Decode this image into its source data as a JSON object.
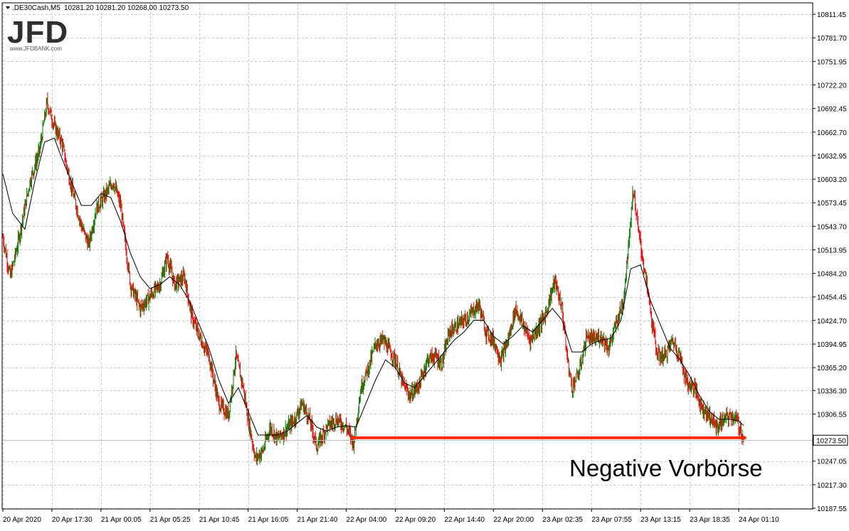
{
  "header": {
    "symbol": ".DE30Cash,M5",
    "ohlc": "10281.20 10281.20 10268,00 10273.50"
  },
  "logo": {
    "text": "JFD",
    "subtext": "www.JFDBANK.com"
  },
  "annotation": {
    "text": "Negative Vorbörse",
    "color": "#ff2a00"
  },
  "chart_data": {
    "type": "line",
    "ylim": [
      10187.55,
      10825
    ],
    "y_ticks": [
      "10811.45",
      "10781.70",
      "10751.95",
      "10722.20",
      "10692.45",
      "10662.70",
      "10632.95",
      "10603.20",
      "10573.45",
      "10543.70",
      "10513.95",
      "10484.20",
      "10454.45",
      "10424.70",
      "10394.95",
      "10365.20",
      "10336.30",
      "10306.55",
      "10247.05",
      "10217.30",
      "10187.55"
    ],
    "y_tick_values": [
      10811.45,
      10781.7,
      10751.95,
      10722.2,
      10692.45,
      10662.7,
      10632.95,
      10603.2,
      10573.45,
      10543.7,
      10513.95,
      10484.2,
      10454.45,
      10424.7,
      10394.95,
      10365.2,
      10336.3,
      10306.55,
      10247.05,
      10217.3,
      10187.55
    ],
    "current_price": {
      "value": 10273.5,
      "label": "10273.50"
    },
    "x_ticks": [
      "20 Apr 2020",
      "20 Apr 17:30",
      "21 Apr 00:05",
      "21 Apr 05:25",
      "21 Apr 10:45",
      "21 Apr 16:05",
      "21 Apr 21:40",
      "22 Apr 04:00",
      "22 Apr 09:20",
      "22 Apr 14:40",
      "22 Apr 20:00",
      "23 Apr 02:35",
      "23 Apr 07:55",
      "23 Apr 13:15",
      "23 Apr 18:35",
      "24 Apr 01:10"
    ],
    "x_tick_index": [
      0,
      1,
      2,
      3,
      4,
      5,
      6,
      7,
      8,
      9,
      10,
      11,
      12,
      13,
      14,
      15
    ],
    "x_count": 16,
    "price_path": [
      [
        0.0,
        10530
      ],
      [
        0.15,
        10480
      ],
      [
        0.3,
        10520
      ],
      [
        0.55,
        10600
      ],
      [
        0.75,
        10640
      ],
      [
        0.9,
        10700
      ],
      [
        1.05,
        10670
      ],
      [
        1.2,
        10650
      ],
      [
        1.3,
        10620
      ],
      [
        1.45,
        10580
      ],
      [
        1.6,
        10545
      ],
      [
        1.75,
        10520
      ],
      [
        1.9,
        10565
      ],
      [
        2.05,
        10580
      ],
      [
        2.25,
        10600
      ],
      [
        2.4,
        10570
      ],
      [
        2.6,
        10470
      ],
      [
        2.8,
        10440
      ],
      [
        3.0,
        10455
      ],
      [
        3.2,
        10470
      ],
      [
        3.35,
        10505
      ],
      [
        3.5,
        10470
      ],
      [
        3.7,
        10480
      ],
      [
        3.85,
        10430
      ],
      [
        4.0,
        10405
      ],
      [
        4.2,
        10380
      ],
      [
        4.4,
        10320
      ],
      [
        4.6,
        10305
      ],
      [
        4.75,
        10380
      ],
      [
        4.9,
        10340
      ],
      [
        5.0,
        10300
      ],
      [
        5.15,
        10250
      ],
      [
        5.3,
        10260
      ],
      [
        5.45,
        10290
      ],
      [
        5.6,
        10275
      ],
      [
        5.75,
        10285
      ],
      [
        5.95,
        10300
      ],
      [
        6.1,
        10320
      ],
      [
        6.25,
        10300
      ],
      [
        6.4,
        10265
      ],
      [
        6.6,
        10290
      ],
      [
        6.8,
        10300
      ],
      [
        7.0,
        10290
      ],
      [
        7.15,
        10270
      ],
      [
        7.3,
        10340
      ],
      [
        7.45,
        10365
      ],
      [
        7.6,
        10395
      ],
      [
        7.75,
        10400
      ],
      [
        8.0,
        10375
      ],
      [
        8.15,
        10345
      ],
      [
        8.3,
        10330
      ],
      [
        8.5,
        10345
      ],
      [
        8.65,
        10375
      ],
      [
        8.8,
        10380
      ],
      [
        8.95,
        10370
      ],
      [
        9.1,
        10410
      ],
      [
        9.3,
        10420
      ],
      [
        9.5,
        10430
      ],
      [
        9.7,
        10445
      ],
      [
        9.85,
        10410
      ],
      [
        10.0,
        10400
      ],
      [
        10.15,
        10375
      ],
      [
        10.3,
        10400
      ],
      [
        10.45,
        10440
      ],
      [
        10.6,
        10420
      ],
      [
        10.75,
        10400
      ],
      [
        10.9,
        10415
      ],
      [
        11.05,
        10430
      ],
      [
        11.25,
        10475
      ],
      [
        11.4,
        10440
      ],
      [
        11.5,
        10380
      ],
      [
        11.6,
        10340
      ],
      [
        11.75,
        10360
      ],
      [
        11.9,
        10405
      ],
      [
        12.05,
        10400
      ],
      [
        12.2,
        10405
      ],
      [
        12.35,
        10390
      ],
      [
        12.5,
        10420
      ],
      [
        12.65,
        10450
      ],
      [
        12.75,
        10520
      ],
      [
        12.85,
        10590
      ],
      [
        12.95,
        10540
      ],
      [
        13.05,
        10500
      ],
      [
        13.15,
        10460
      ],
      [
        13.25,
        10415
      ],
      [
        13.35,
        10380
      ],
      [
        13.5,
        10380
      ],
      [
        13.65,
        10400
      ],
      [
        13.8,
        10380
      ],
      [
        13.95,
        10345
      ],
      [
        14.1,
        10340
      ],
      [
        14.25,
        10315
      ],
      [
        14.4,
        10305
      ],
      [
        14.55,
        10290
      ],
      [
        14.7,
        10300
      ],
      [
        14.85,
        10305
      ],
      [
        14.95,
        10300
      ],
      [
        15.05,
        10285
      ],
      [
        15.1,
        10273.5
      ]
    ],
    "ma_path": [
      [
        0.0,
        10610
      ],
      [
        0.2,
        10560
      ],
      [
        0.45,
        10540
      ],
      [
        0.65,
        10600
      ],
      [
        0.85,
        10650
      ],
      [
        1.05,
        10655
      ],
      [
        1.2,
        10630
      ],
      [
        1.4,
        10600
      ],
      [
        1.6,
        10570
      ],
      [
        1.8,
        10570
      ],
      [
        2.0,
        10585
      ],
      [
        2.2,
        10580
      ],
      [
        2.4,
        10550
      ],
      [
        2.6,
        10510
      ],
      [
        2.8,
        10480
      ],
      [
        3.0,
        10465
      ],
      [
        3.2,
        10470
      ],
      [
        3.4,
        10480
      ],
      [
        3.6,
        10470
      ],
      [
        3.8,
        10450
      ],
      [
        4.0,
        10420
      ],
      [
        4.2,
        10390
      ],
      [
        4.4,
        10350
      ],
      [
        4.6,
        10320
      ],
      [
        4.8,
        10340
      ],
      [
        5.0,
        10310
      ],
      [
        5.2,
        10280
      ],
      [
        5.4,
        10280
      ],
      [
        5.6,
        10280
      ],
      [
        5.8,
        10285
      ],
      [
        6.0,
        10295
      ],
      [
        6.2,
        10305
      ],
      [
        6.4,
        10290
      ],
      [
        6.6,
        10285
      ],
      [
        6.8,
        10290
      ],
      [
        7.0,
        10292
      ],
      [
        7.2,
        10290
      ],
      [
        7.4,
        10320
      ],
      [
        7.6,
        10350
      ],
      [
        7.8,
        10375
      ],
      [
        8.0,
        10365
      ],
      [
        8.2,
        10345
      ],
      [
        8.4,
        10340
      ],
      [
        8.6,
        10355
      ],
      [
        8.8,
        10370
      ],
      [
        9.0,
        10385
      ],
      [
        9.2,
        10400
      ],
      [
        9.4,
        10410
      ],
      [
        9.6,
        10425
      ],
      [
        9.8,
        10425
      ],
      [
        10.0,
        10405
      ],
      [
        10.2,
        10395
      ],
      [
        10.4,
        10405
      ],
      [
        10.6,
        10418
      ],
      [
        10.8,
        10410
      ],
      [
        11.0,
        10425
      ],
      [
        11.2,
        10440
      ],
      [
        11.4,
        10425
      ],
      [
        11.6,
        10385
      ],
      [
        11.8,
        10385
      ],
      [
        12.0,
        10395
      ],
      [
        12.2,
        10400
      ],
      [
        12.4,
        10402
      ],
      [
        12.6,
        10425
      ],
      [
        12.8,
        10490
      ],
      [
        13.0,
        10495
      ],
      [
        13.2,
        10450
      ],
      [
        13.4,
        10420
      ],
      [
        13.6,
        10390
      ],
      [
        13.8,
        10375
      ],
      [
        14.0,
        10355
      ],
      [
        14.2,
        10330
      ],
      [
        14.4,
        10310
      ],
      [
        14.6,
        10300
      ],
      [
        14.8,
        10300
      ],
      [
        15.0,
        10298
      ],
      [
        15.1,
        10292
      ]
    ],
    "support_line": {
      "y": 10276.5,
      "x_from": 7.13,
      "x_to": 15.12,
      "color": "#ff2a00"
    },
    "colors": {
      "up": "#008000",
      "down": "#ff0000",
      "ma": "#000000",
      "grid": "#c8c8c8"
    }
  }
}
